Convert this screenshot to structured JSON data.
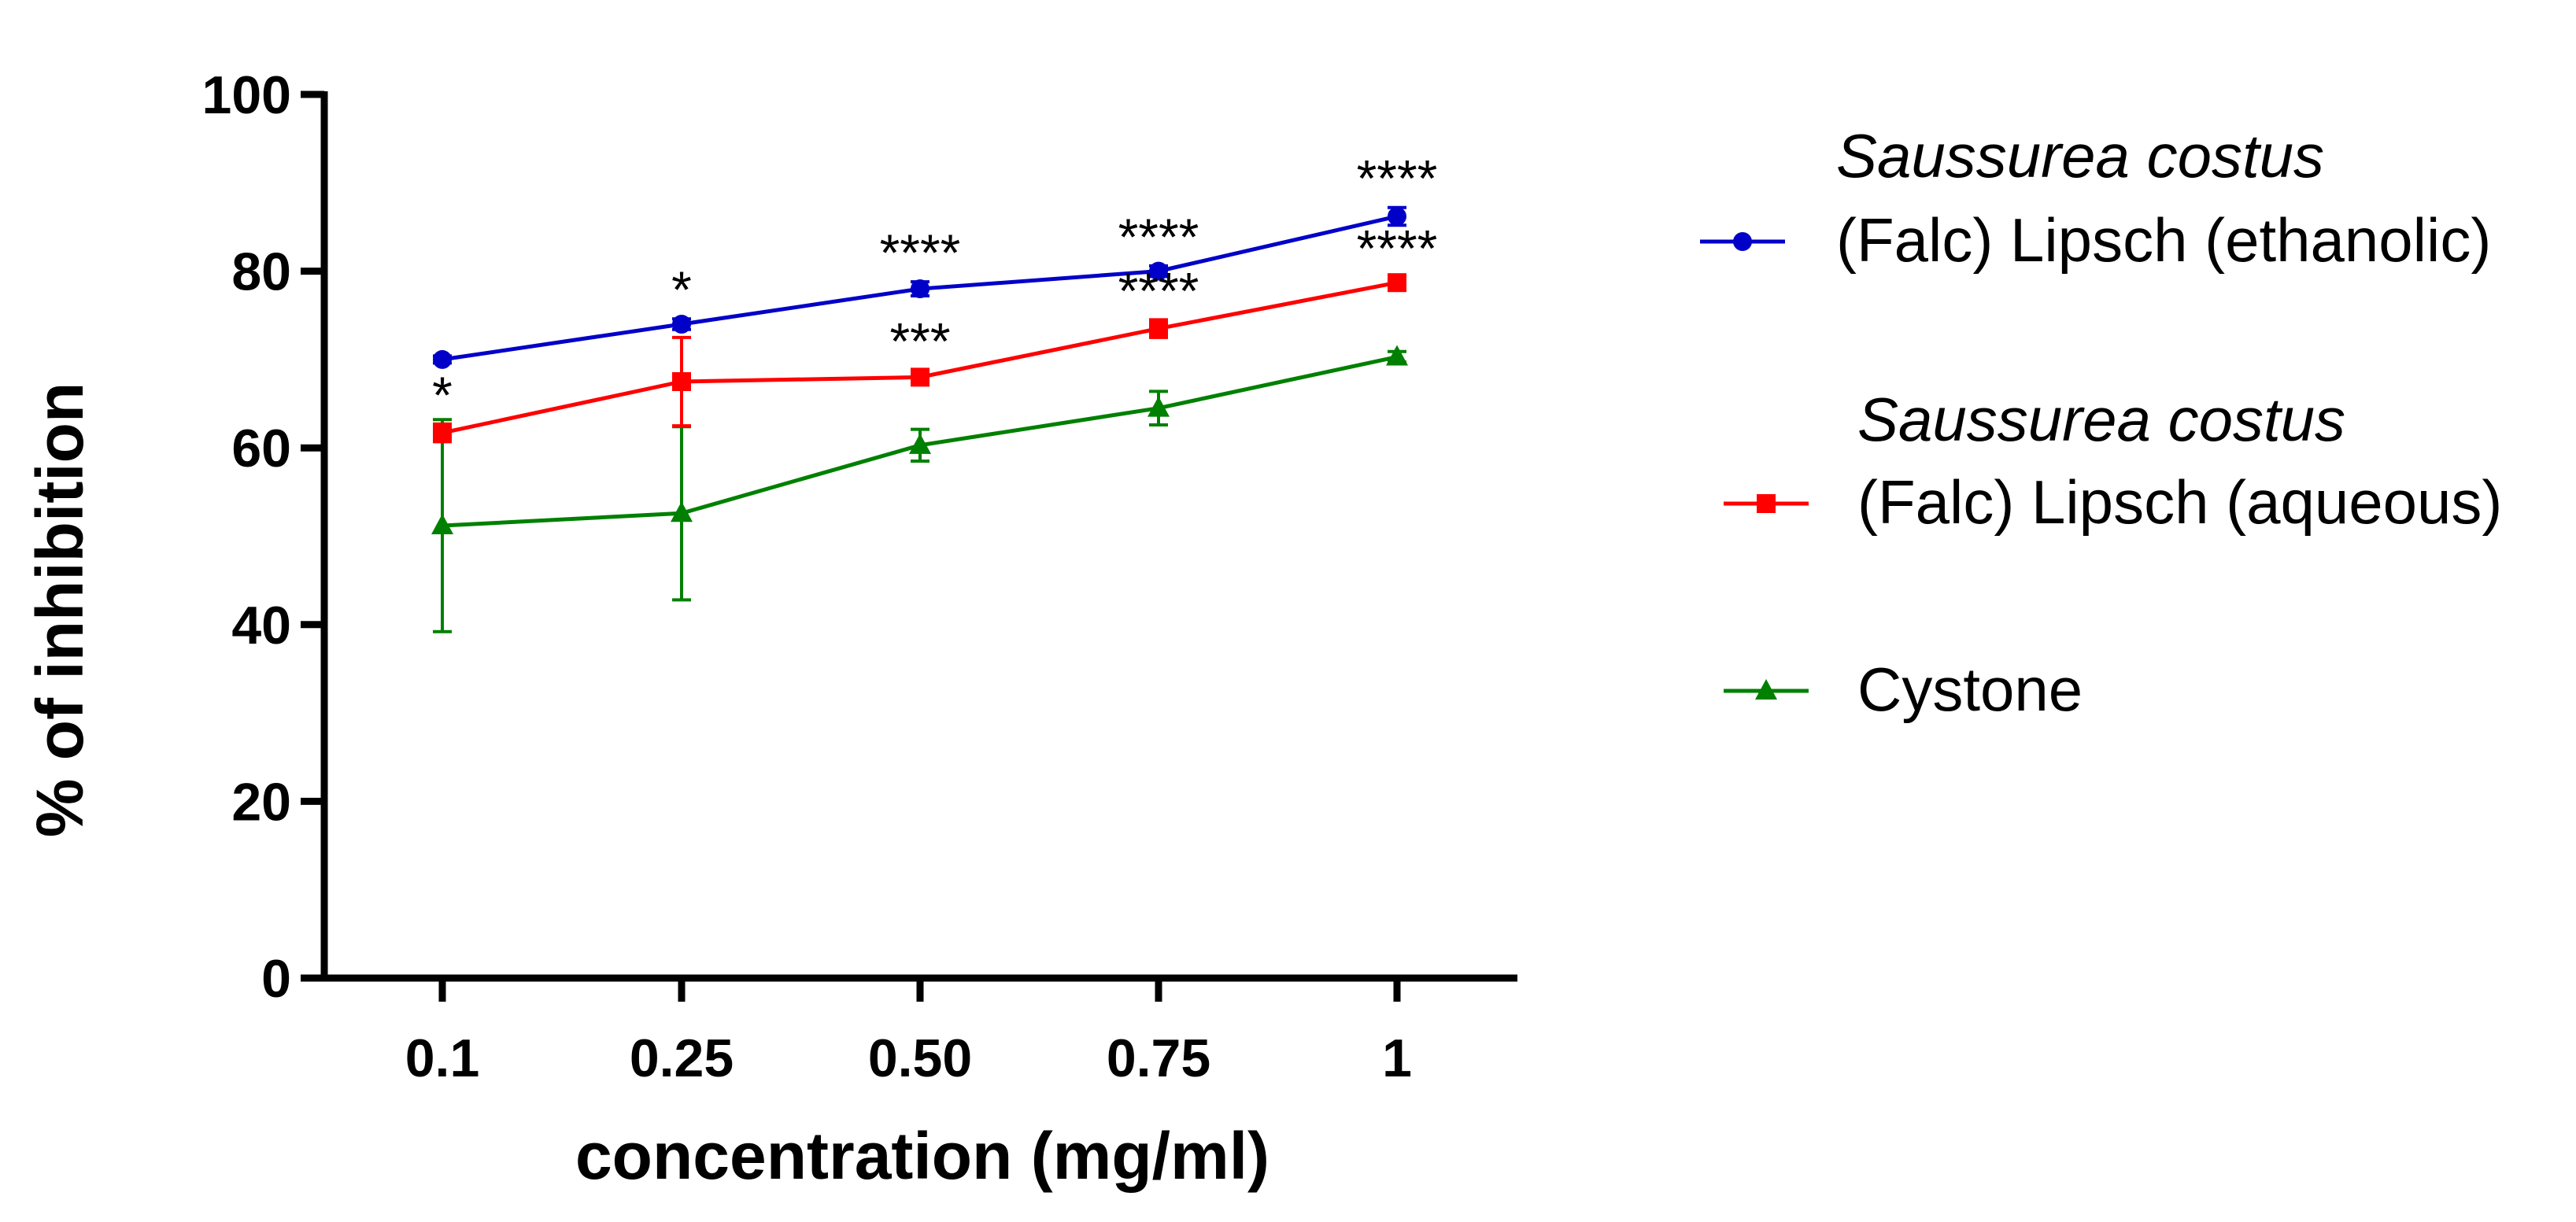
{
  "chart_data": {
    "type": "line",
    "title": "",
    "xlabel": "concentration (mg/ml)",
    "ylabel": "% of inhibition",
    "categories": [
      "0.1",
      "0.25",
      "0.50",
      "0.75",
      "1"
    ],
    "ylim": [
      0,
      100
    ],
    "yticks": [
      0,
      20,
      40,
      60,
      80,
      100
    ],
    "grid": false,
    "legend_position": "right",
    "series": [
      {
        "name_line1": "Saussurea costus",
        "name_line2": "(Falc) Lipsch (ethanolic)",
        "color": "#0000c8",
        "marker": "circle",
        "values": [
          70.0,
          74.0,
          78.0,
          80.0,
          86.2
        ],
        "errors": [
          0.4,
          0.6,
          0.8,
          0.6,
          1.0
        ],
        "annotations": [
          "",
          "*",
          "****",
          "****",
          "****"
        ]
      },
      {
        "name_line1": "Saussurea costus",
        "name_line2": "(Falc) Lipsch (aqueous)",
        "color": "#ff0000",
        "marker": "square",
        "values": [
          61.7,
          67.5,
          68.0,
          73.5,
          78.7
        ],
        "errors": [
          1.0,
          5.0,
          0.8,
          1.0,
          0.6
        ],
        "annotations": [
          "*",
          "",
          "***",
          "****",
          "****"
        ]
      },
      {
        "name_line1": "",
        "name_line2": "Cystone",
        "color": "#008000",
        "marker": "triangle",
        "values": [
          51.2,
          52.6,
          60.3,
          64.5,
          70.3
        ],
        "errors": [
          12.0,
          9.8,
          1.8,
          1.9,
          0.6
        ],
        "annotations": [
          "",
          "",
          "",
          "",
          ""
        ]
      }
    ]
  }
}
